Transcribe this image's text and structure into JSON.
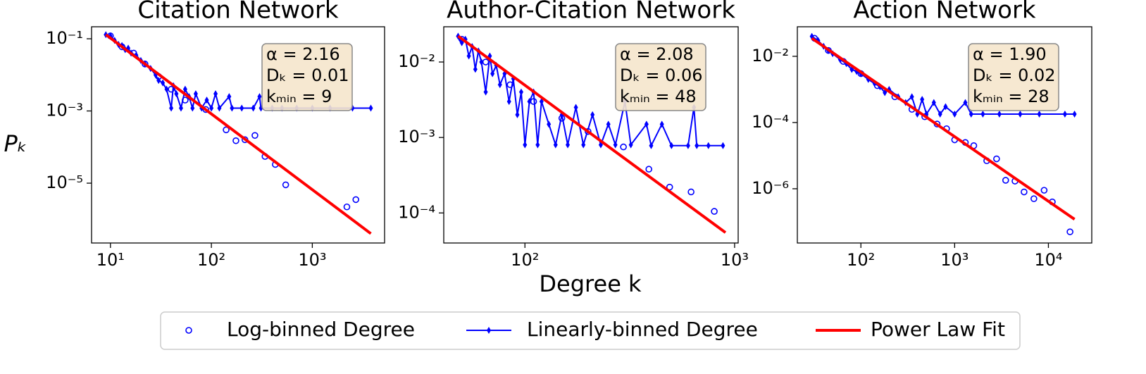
{
  "chart_data": [
    {
      "type": "line",
      "title": "Citation Network",
      "ylabel": "Pₖ",
      "xscale": "log",
      "yscale": "log",
      "xlim": [
        6.5,
        5200
      ],
      "ylim": [
        2.2e-07,
        0.215
      ],
      "xticks": [
        {
          "value": 10,
          "label": "10¹"
        },
        {
          "value": 100,
          "label": "10²"
        },
        {
          "value": 1000,
          "label": "10³"
        }
      ],
      "yticks": [
        {
          "value": 0.1,
          "label": "10⁻¹"
        },
        {
          "value": 0.001,
          "label": "10⁻³"
        },
        {
          "value": 1e-05,
          "label": "10⁻⁵"
        }
      ],
      "annotations": [
        "α = 2.16",
        "Dₖ = 0.01",
        "kₘᵢₙ = 9"
      ],
      "series": [
        {
          "name": "Log-binned Degree",
          "kind": "scatter",
          "color": "#0000ff",
          "x": [
            10,
            13,
            17,
            22,
            30,
            40,
            55,
            88,
            140,
            175,
            215,
            270,
            340,
            430,
            545,
            2200,
            2700
          ],
          "values": [
            0.12,
            0.06,
            0.04,
            0.02,
            0.009,
            0.004,
            0.002,
            0.0011,
            0.0003,
            0.00015,
            0.00016,
            0.00021,
            5.5e-05,
            3.3e-05,
            9e-06,
            2.2e-06,
            3.5e-06
          ]
        },
        {
          "name": "Linearly-binned Degree",
          "kind": "line-marker",
          "color": "#0000ff",
          "x": [
            9,
            10,
            11,
            12,
            13,
            14,
            15,
            16,
            18,
            20,
            22,
            25,
            28,
            30,
            33,
            36,
            40,
            42,
            45,
            50,
            55,
            60,
            65,
            70,
            80,
            90,
            100,
            110,
            120,
            150,
            160,
            200,
            260,
            300,
            310,
            400,
            500,
            700,
            1000,
            1500,
            2500,
            3800
          ],
          "values": [
            0.13,
            0.12,
            0.09,
            0.07,
            0.065,
            0.05,
            0.055,
            0.04,
            0.035,
            0.025,
            0.02,
            0.015,
            0.01,
            0.007,
            0.006,
            0.004,
            0.0012,
            0.005,
            0.003,
            0.0012,
            0.004,
            0.0025,
            0.0012,
            0.003,
            0.0012,
            0.002,
            0.0012,
            0.003,
            0.0012,
            0.0025,
            0.0012,
            0.0012,
            0.0012,
            0.0025,
            0.0012,
            0.0012,
            0.0012,
            0.0012,
            0.0012,
            0.0012,
            0.0012,
            0.0012
          ]
        },
        {
          "name": "Power Law Fit",
          "kind": "line",
          "color": "#ff0000",
          "x": [
            9,
            3800
          ],
          "values": [
            0.13,
            4e-07
          ]
        }
      ]
    },
    {
      "type": "line",
      "title": "Author-Citation Network",
      "xlabel": "Degree k",
      "xscale": "log",
      "yscale": "log",
      "xlim": [
        41,
        1040
      ],
      "ylim": [
        4e-05,
        0.0293
      ],
      "xticks": [
        {
          "value": 100,
          "label": "10²"
        },
        {
          "value": 1000,
          "label": "10³"
        }
      ],
      "yticks": [
        {
          "value": 0.01,
          "label": "10⁻²"
        },
        {
          "value": 0.001,
          "label": "10⁻³"
        },
        {
          "value": 0.0001,
          "label": "10⁻⁴"
        }
      ],
      "annotations": [
        "α = 2.08",
        "Dₖ = 0.06",
        "kₘᵢₙ = 48"
      ],
      "series": [
        {
          "kind": "scatter",
          "color": "#0000ff",
          "x": [
            50,
            65,
            85,
            110,
            150,
            200,
            295,
            390,
            490,
            620,
            800
          ],
          "values": [
            0.02,
            0.01,
            0.005,
            0.003,
            0.0018,
            0.0012,
            0.00075,
            0.00038,
            0.00022,
            0.00019,
            0.000105
          ]
        },
        {
          "kind": "line-marker",
          "color": "#0000ff",
          "x": [
            48,
            50,
            52,
            54,
            56,
            58,
            60,
            62,
            65,
            68,
            70,
            73,
            76,
            80,
            84,
            88,
            92,
            96,
            100,
            105,
            110,
            115,
            120,
            130,
            140,
            150,
            160,
            175,
            190,
            210,
            230,
            250,
            270,
            300,
            320,
            380,
            400,
            450,
            500,
            600,
            640,
            660,
            750,
            880
          ],
          "values": [
            0.022,
            0.018,
            0.02,
            0.012,
            0.016,
            0.008,
            0.014,
            0.01,
            0.004,
            0.012,
            0.007,
            0.009,
            0.005,
            0.007,
            0.003,
            0.006,
            0.002,
            0.004,
            0.0008,
            0.003,
            0.004,
            0.0008,
            0.003,
            0.0015,
            0.0008,
            0.002,
            0.0008,
            0.0025,
            0.0008,
            0.002,
            0.0008,
            0.0015,
            0.0008,
            0.003,
            0.0008,
            0.0015,
            0.00078,
            0.0015,
            0.00078,
            0.00078,
            0.0025,
            0.00078,
            0.00078,
            0.00078
          ]
        },
        {
          "kind": "line",
          "color": "#ff0000",
          "x": [
            48,
            905
          ],
          "values": [
            0.022,
            5.5e-05
          ]
        }
      ]
    },
    {
      "type": "line",
      "title": "Action Network",
      "xscale": "log",
      "yscale": "log",
      "xlim": [
        21,
        29000
      ],
      "ylim": [
        2.3e-08,
        0.078
      ],
      "xticks": [
        {
          "value": 100,
          "label": "10²"
        },
        {
          "value": 1000,
          "label": "10³"
        },
        {
          "value": 10000,
          "label": "10⁴"
        }
      ],
      "yticks": [
        {
          "value": 0.01,
          "label": "10⁻²"
        },
        {
          "value": 0.0001,
          "label": "10⁻⁴"
        },
        {
          "value": 1e-06,
          "label": "10⁻⁶"
        }
      ],
      "annotations": [
        "α = 1.90",
        "Dₖ = 0.02",
        "kₘᵢₙ = 28"
      ],
      "series": [
        {
          "kind": "scatter",
          "color": "#0000ff",
          "x": [
            32,
            45,
            65,
            100,
            150,
            230,
            350,
            480,
            650,
            820,
            1000,
            1300,
            1600,
            2200,
            2800,
            3500,
            4400,
            5500,
            7000,
            9000,
            11000,
            17000
          ],
          "values": [
            0.035,
            0.015,
            0.007,
            0.003,
            0.0013,
            0.0006,
            0.00025,
            0.00015,
            9e-05,
            6.5e-05,
            3e-05,
            2.5e-05,
            2e-05,
            7e-06,
            8e-06,
            1.8e-06,
            1.7e-06,
            8e-07,
            5e-07,
            9e-07,
            4e-07,
            5e-08
          ]
        },
        {
          "kind": "line-marker",
          "color": "#0000ff",
          "x": [
            30,
            35,
            40,
            45,
            50,
            60,
            70,
            80,
            90,
            100,
            120,
            140,
            160,
            180,
            200,
            250,
            300,
            350,
            400,
            450,
            500,
            600,
            700,
            800,
            1000,
            1300,
            1500,
            2000,
            3000,
            5000,
            8000,
            15000,
            19000
          ],
          "values": [
            0.04,
            0.03,
            0.02,
            0.015,
            0.012,
            0.008,
            0.006,
            0.004,
            0.0035,
            0.003,
            0.002,
            0.0015,
            0.0012,
            0.0008,
            0.001,
            0.0006,
            0.0004,
            0.0006,
            0.00018,
            0.0005,
            0.00018,
            0.0004,
            0.00018,
            0.0003,
            0.00018,
            0.0004,
            0.00018,
            0.00018,
            0.00018,
            0.00018,
            0.00018,
            0.00018,
            0.00018
          ]
        },
        {
          "kind": "line",
          "color": "#ff0000",
          "x": [
            30,
            19000
          ],
          "values": [
            0.035,
            1.2e-07
          ]
        }
      ]
    }
  ]
}
